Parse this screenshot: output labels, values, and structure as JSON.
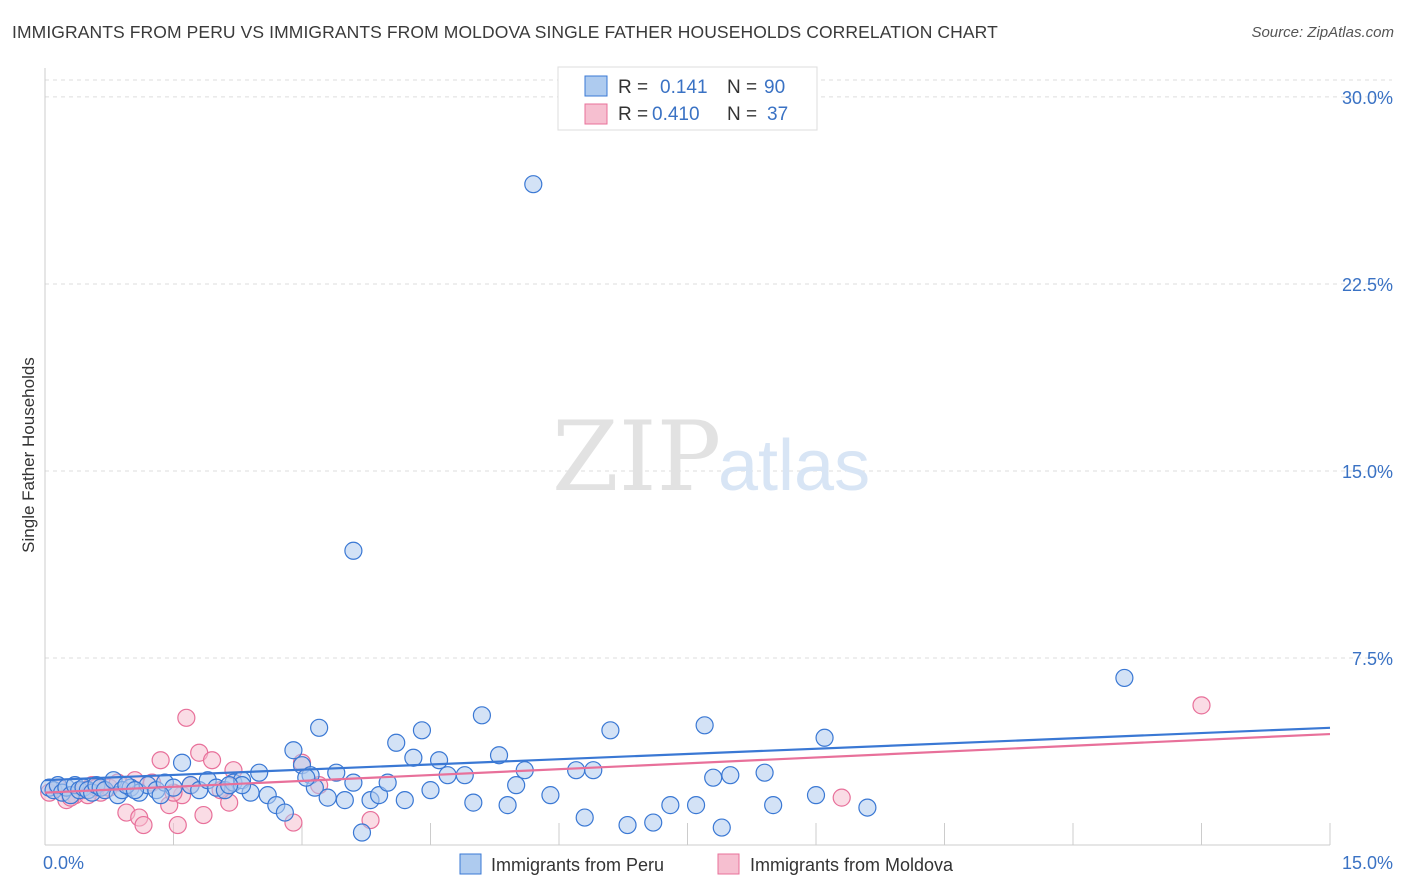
{
  "header": {
    "title": "IMMIGRANTS FROM PERU VS IMMIGRANTS FROM MOLDOVA SINGLE FATHER HOUSEHOLDS CORRELATION CHART",
    "source": "Source: ZipAtlas.com"
  },
  "watermark": {
    "part1": "ZIP",
    "part2": "atlas"
  },
  "colors": {
    "peru": "#3a78d4",
    "peru_fill": "#aecbef",
    "moldova": "#e8709a",
    "moldova_fill": "#f6bfd0",
    "grid": "#dddddd",
    "tick_text": "#3a72c4"
  },
  "chart_data": {
    "type": "scatter",
    "title": "IMMIGRANTS FROM PERU VS IMMIGRANTS FROM MOLDOVA SINGLE FATHER HOUSEHOLDS CORRELATION CHART",
    "xlabel": "",
    "ylabel": "Single Father Households",
    "xlim": [
      0,
      15
    ],
    "ylim": [
      0,
      31
    ],
    "x_tick_labels": [
      "0.0%",
      "15.0%"
    ],
    "y_ticks": [
      7.5,
      15.0,
      22.5,
      30.0
    ],
    "y_tick_labels": [
      "7.5%",
      "15.0%",
      "22.5%",
      "30.0%"
    ],
    "grid": true,
    "legend": {
      "placement": "top-center",
      "entries": [
        {
          "r_label": "R =",
          "r_value": "0.141",
          "n_label": "N =",
          "n_value": "90"
        },
        {
          "r_label": "R =",
          "r_value": "0.410",
          "n_label": "N =",
          "n_value": "37"
        }
      ]
    },
    "series": [
      {
        "name": "Immigrants from Peru",
        "trend": {
          "x": [
            0,
            15
          ],
          "y": [
            2.6,
            4.7
          ]
        },
        "points": [
          [
            0.05,
            2.3
          ],
          [
            0.1,
            2.2
          ],
          [
            0.15,
            2.4
          ],
          [
            0.2,
            2.1
          ],
          [
            0.25,
            2.3
          ],
          [
            0.3,
            2.0
          ],
          [
            0.35,
            2.4
          ],
          [
            0.4,
            2.2
          ],
          [
            0.45,
            2.3
          ],
          [
            0.5,
            2.2
          ],
          [
            0.55,
            2.1
          ],
          [
            0.6,
            2.4
          ],
          [
            0.65,
            2.3
          ],
          [
            0.7,
            2.2
          ],
          [
            0.8,
            2.6
          ],
          [
            0.85,
            2.0
          ],
          [
            0.9,
            2.2
          ],
          [
            1.0,
            2.3
          ],
          [
            1.1,
            2.1
          ],
          [
            1.2,
            2.4
          ],
          [
            1.3,
            2.2
          ],
          [
            1.4,
            2.5
          ],
          [
            1.5,
            2.3
          ],
          [
            1.6,
            3.3
          ],
          [
            1.7,
            2.4
          ],
          [
            1.8,
            2.2
          ],
          [
            1.9,
            2.6
          ],
          [
            2.0,
            2.3
          ],
          [
            2.1,
            2.2
          ],
          [
            2.2,
            2.5
          ],
          [
            2.3,
            2.6
          ],
          [
            2.4,
            2.1
          ],
          [
            2.5,
            2.9
          ],
          [
            2.6,
            2.0
          ],
          [
            2.7,
            1.6
          ],
          [
            2.8,
            1.3
          ],
          [
            2.9,
            3.8
          ],
          [
            3.0,
            3.2
          ],
          [
            3.1,
            2.8
          ],
          [
            3.15,
            2.3
          ],
          [
            3.2,
            4.7
          ],
          [
            3.3,
            1.9
          ],
          [
            3.4,
            2.9
          ],
          [
            3.5,
            1.8
          ],
          [
            3.6,
            2.5
          ],
          [
            3.7,
            0.5
          ],
          [
            3.8,
            1.8
          ],
          [
            3.9,
            2.0
          ],
          [
            4.0,
            2.5
          ],
          [
            4.1,
            4.1
          ],
          [
            4.2,
            1.8
          ],
          [
            4.3,
            3.5
          ],
          [
            4.4,
            4.6
          ],
          [
            4.5,
            2.2
          ],
          [
            4.6,
            3.4
          ],
          [
            4.7,
            2.8
          ],
          [
            4.9,
            2.8
          ],
          [
            5.0,
            1.7
          ],
          [
            5.1,
            5.2
          ],
          [
            5.3,
            3.6
          ],
          [
            5.4,
            1.6
          ],
          [
            5.5,
            2.4
          ],
          [
            5.6,
            3.0
          ],
          [
            5.7,
            26.5
          ],
          [
            5.9,
            2.0
          ],
          [
            6.2,
            3.0
          ],
          [
            6.3,
            1.1
          ],
          [
            6.4,
            3.0
          ],
          [
            6.6,
            4.6
          ],
          [
            6.8,
            0.8
          ],
          [
            7.1,
            0.9
          ],
          [
            7.3,
            1.6
          ],
          [
            7.6,
            1.6
          ],
          [
            7.7,
            4.8
          ],
          [
            7.8,
            2.7
          ],
          [
            7.9,
            0.7
          ],
          [
            8.0,
            2.8
          ],
          [
            8.4,
            2.9
          ],
          [
            8.5,
            1.6
          ],
          [
            9.0,
            2.0
          ],
          [
            9.1,
            4.3
          ],
          [
            9.6,
            1.5
          ],
          [
            12.6,
            6.7
          ],
          [
            3.6,
            11.8
          ],
          [
            2.3,
            2.4
          ],
          [
            1.35,
            2.0
          ],
          [
            0.95,
            2.4
          ],
          [
            1.05,
            2.2
          ],
          [
            2.15,
            2.4
          ],
          [
            3.05,
            2.7
          ]
        ]
      },
      {
        "name": "Immigrants from Moldova",
        "trend": {
          "x": [
            0,
            15
          ],
          "y": [
            2.1,
            4.45
          ]
        },
        "points": [
          [
            0.05,
            2.1
          ],
          [
            0.15,
            2.3
          ],
          [
            0.25,
            1.8
          ],
          [
            0.35,
            2.0
          ],
          [
            0.45,
            2.2
          ],
          [
            0.55,
            2.4
          ],
          [
            0.65,
            2.1
          ],
          [
            0.75,
            2.3
          ],
          [
            0.85,
            2.5
          ],
          [
            0.95,
            1.3
          ],
          [
            1.05,
            2.6
          ],
          [
            1.1,
            1.1
          ],
          [
            1.15,
            0.8
          ],
          [
            1.25,
            2.5
          ],
          [
            1.35,
            3.4
          ],
          [
            1.45,
            1.6
          ],
          [
            1.55,
            0.8
          ],
          [
            1.6,
            2.0
          ],
          [
            1.65,
            5.1
          ],
          [
            1.7,
            2.4
          ],
          [
            1.8,
            3.7
          ],
          [
            1.85,
            1.2
          ],
          [
            1.95,
            3.4
          ],
          [
            2.1,
            2.2
          ],
          [
            2.15,
            1.7
          ],
          [
            2.2,
            3.0
          ],
          [
            2.9,
            0.9
          ],
          [
            3.0,
            3.3
          ],
          [
            3.2,
            2.4
          ],
          [
            3.8,
            1.0
          ],
          [
            9.3,
            1.9
          ],
          [
            13.5,
            5.6
          ],
          [
            0.3,
            1.9
          ],
          [
            0.5,
            2.0
          ],
          [
            0.6,
            2.3
          ],
          [
            1.5,
            2.1
          ],
          [
            2.05,
            2.2
          ]
        ]
      }
    ]
  },
  "bottom_legend": {
    "items": [
      {
        "label": "Immigrants from Peru"
      },
      {
        "label": "Immigrants from Moldova"
      }
    ]
  }
}
